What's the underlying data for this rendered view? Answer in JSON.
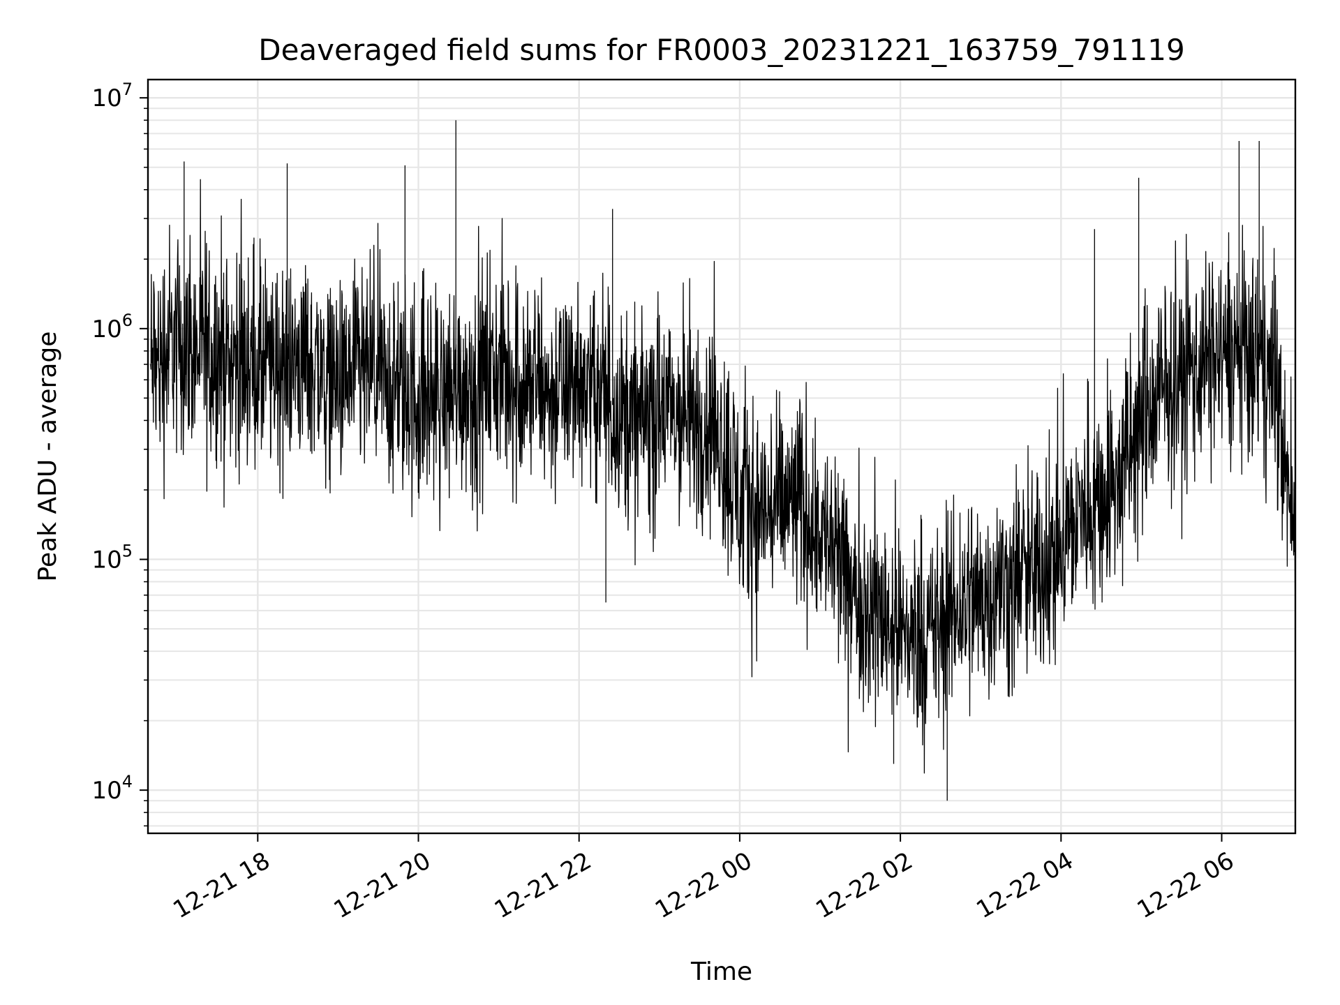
{
  "chart_data": {
    "type": "line",
    "title": "Deaveraged field sums for FR0003_20231221_163759_791119",
    "xlabel": "Time",
    "ylabel": "Peak ADU - average",
    "y_scale": "log",
    "ylim": [
      6500,
      12000000
    ],
    "xlim": [
      "2023-12-21 16:38",
      "2023-12-22 06:55"
    ],
    "grid": true,
    "grid_color": "#e6e6e6",
    "line_color": "#000000",
    "x_ticks": [
      {
        "value": "2023-12-21 18:00",
        "label": "12-21 18"
      },
      {
        "value": "2023-12-21 20:00",
        "label": "12-21 20"
      },
      {
        "value": "2023-12-21 22:00",
        "label": "12-21 22"
      },
      {
        "value": "2023-12-22 00:00",
        "label": "12-22 00"
      },
      {
        "value": "2023-12-22 02:00",
        "label": "12-22 02"
      },
      {
        "value": "2023-12-22 04:00",
        "label": "12-22 04"
      },
      {
        "value": "2023-12-22 06:00",
        "label": "12-22 06"
      }
    ],
    "y_ticks": [
      {
        "value": 10000,
        "base": "10",
        "exp": "4"
      },
      {
        "value": 100000,
        "base": "10",
        "exp": "5"
      },
      {
        "value": 1000000,
        "base": "10",
        "exp": "6"
      },
      {
        "value": 10000000,
        "base": "10",
        "exp": "7"
      }
    ],
    "series": [
      {
        "x": [
          "2023-12-21 16:40",
          "2023-12-21 17:00",
          "2023-12-21 17:20",
          "2023-12-21 17:40",
          "2023-12-21 18:00",
          "2023-12-21 18:20",
          "2023-12-21 18:40",
          "2023-12-21 19:00",
          "2023-12-21 19:20",
          "2023-12-21 19:40",
          "2023-12-21 20:00",
          "2023-12-21 20:20",
          "2023-12-21 20:40",
          "2023-12-21 21:00",
          "2023-12-21 21:20",
          "2023-12-21 21:40",
          "2023-12-21 22:00",
          "2023-12-21 22:20",
          "2023-12-21 22:40",
          "2023-12-21 23:00",
          "2023-12-21 23:20",
          "2023-12-21 23:40",
          "2023-12-22 00:00",
          "2023-12-22 00:20",
          "2023-12-22 00:40",
          "2023-12-22 01:00",
          "2023-12-22 01:20",
          "2023-12-22 01:40",
          "2023-12-22 02:00",
          "2023-12-22 02:20",
          "2023-12-22 02:40",
          "2023-12-22 03:00",
          "2023-12-22 03:20",
          "2023-12-22 03:40",
          "2023-12-22 04:00",
          "2023-12-22 04:20",
          "2023-12-22 04:40",
          "2023-12-22 05:00",
          "2023-12-22 05:20",
          "2023-12-22 05:40",
          "2023-12-22 06:00",
          "2023-12-22 06:20",
          "2023-12-22 06:40",
          "2023-12-22 06:55"
        ],
        "y": [
          650000,
          900000,
          780000,
          720000,
          700000,
          680000,
          720000,
          560000,
          640000,
          560000,
          500000,
          520000,
          600000,
          650000,
          580000,
          520000,
          600000,
          500000,
          380000,
          440000,
          400000,
          420000,
          180000,
          160000,
          180000,
          140000,
          80000,
          60000,
          50000,
          45000,
          60000,
          70000,
          80000,
          90000,
          110000,
          180000,
          200000,
          380000,
          560000,
          700000,
          800000,
          750000,
          600000,
          120000
        ],
        "spikes": [
          {
            "x": "2023-12-21 17:05",
            "y": 5300000
          },
          {
            "x": "2023-12-21 18:22",
            "y": 5200000
          },
          {
            "x": "2023-12-21 19:50",
            "y": 5100000
          },
          {
            "x": "2023-12-21 20:28",
            "y": 8000000
          },
          {
            "x": "2023-12-21 22:25",
            "y": 3300000
          },
          {
            "x": "2023-12-22 04:25",
            "y": 2700000
          },
          {
            "x": "2023-12-22 04:58",
            "y": 4500000
          },
          {
            "x": "2023-12-22 06:13",
            "y": 6500000
          },
          {
            "x": "2023-12-22 06:28",
            "y": 6500000
          },
          {
            "x": "2023-12-22 02:35",
            "y": 9000
          },
          {
            "x": "2023-12-21 22:20",
            "y": 65000
          },
          {
            "x": "2023-12-22 01:55",
            "y": 13000
          }
        ]
      }
    ]
  }
}
